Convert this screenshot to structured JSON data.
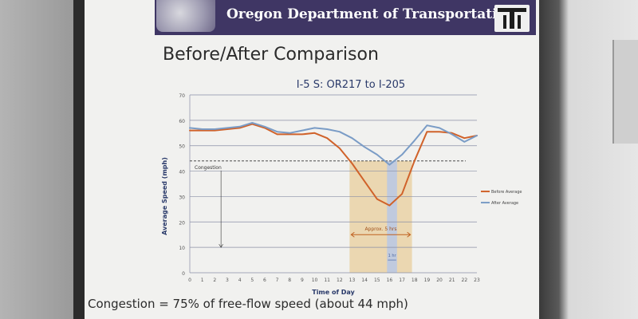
{
  "slide": {
    "banner_title": "Oregon Department of Transportation",
    "title": "Before/After Comparison",
    "footnote": "Congestion = 75% of free-flow speed (about 44 mph)"
  },
  "colors": {
    "banner": "#3f3664",
    "before_series": "#d0622a",
    "after_series": "#7a9cc6",
    "shade_zone": "#e8c98f",
    "shade_improved": "#b9c8e6"
  },
  "chart_data": {
    "type": "line",
    "title": "I-5 S: OR217 to I-205",
    "xlabel": "Time of Day",
    "ylabel": "Average Speed (mph)",
    "x": [
      0,
      1,
      2,
      3,
      4,
      5,
      6,
      7,
      8,
      9,
      10,
      11,
      12,
      13,
      14,
      15,
      16,
      17,
      18,
      19,
      20,
      21,
      22,
      23
    ],
    "xlim": [
      0,
      23
    ],
    "ylim": [
      0,
      70
    ],
    "yticks": [
      0,
      10,
      20,
      30,
      40,
      50,
      60,
      70
    ],
    "grid": true,
    "legend": "right",
    "series": [
      {
        "name": "Before Average",
        "color": "#d0622a",
        "values": [
          56,
          56,
          56,
          56.5,
          57,
          58.5,
          57,
          54.5,
          54.5,
          54.5,
          55,
          53,
          49,
          43,
          36,
          29,
          26.5,
          31,
          44,
          55.5,
          55.5,
          55,
          53,
          54
        ]
      },
      {
        "name": "After Average",
        "color": "#7a9cc6",
        "values": [
          57,
          56.5,
          56.5,
          57,
          57.5,
          59,
          57.5,
          55.5,
          55,
          56,
          57,
          56.5,
          55.5,
          53,
          49.5,
          46.5,
          42.5,
          46.5,
          52,
          58,
          57,
          54.5,
          51.5,
          54
        ]
      }
    ],
    "congestion_label": "Congestion",
    "congestion_threshold": 44,
    "shaded_zone": {
      "x_start": 12.8,
      "x_end": 17.8,
      "label": "Approx. 5 hrs"
    },
    "improved_zone": {
      "x_start": 15.8,
      "x_end": 16.6,
      "label": "1 hr"
    }
  }
}
